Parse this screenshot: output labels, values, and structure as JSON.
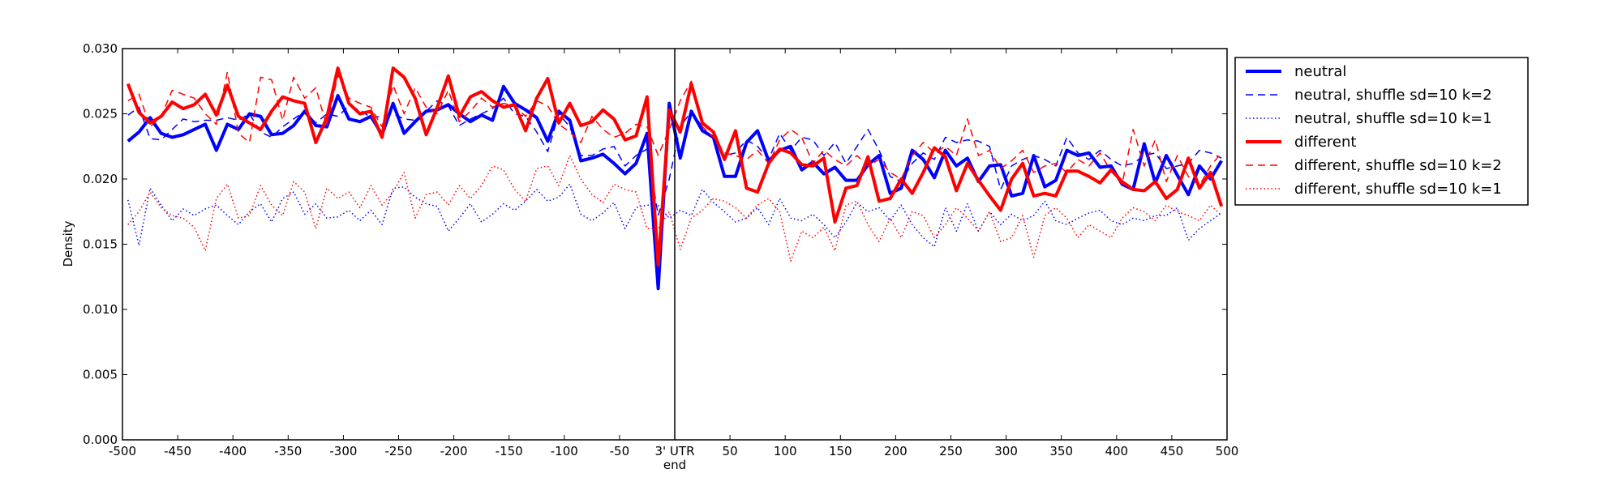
{
  "chart_data": {
    "type": "line",
    "xlabel": "",
    "ylabel": "Density",
    "xlim": [
      -500,
      500
    ],
    "ylim": [
      0.0,
      0.03
    ],
    "grid": false,
    "legend_position": "outside-upper-right",
    "vline_x": 0,
    "x_ticks": [
      {
        "value": -500,
        "label": "-500"
      },
      {
        "value": -450,
        "label": "-450"
      },
      {
        "value": -400,
        "label": "-400"
      },
      {
        "value": -350,
        "label": "-350"
      },
      {
        "value": -300,
        "label": "-300"
      },
      {
        "value": -250,
        "label": "-250"
      },
      {
        "value": -200,
        "label": "-200"
      },
      {
        "value": -150,
        "label": "-150"
      },
      {
        "value": -100,
        "label": "-100"
      },
      {
        "value": -50,
        "label": "-50"
      },
      {
        "value": 0,
        "label": "3' UTR",
        "sublabel": "end"
      },
      {
        "value": 50,
        "label": "50"
      },
      {
        "value": 100,
        "label": "100"
      },
      {
        "value": 150,
        "label": "150"
      },
      {
        "value": 200,
        "label": "200"
      },
      {
        "value": 250,
        "label": "250"
      },
      {
        "value": 300,
        "label": "300"
      },
      {
        "value": 350,
        "label": "350"
      },
      {
        "value": 400,
        "label": "400"
      },
      {
        "value": 450,
        "label": "450"
      },
      {
        "value": 500,
        "label": "500"
      }
    ],
    "y_ticks": [
      {
        "value": 0.0,
        "label": "0.000"
      },
      {
        "value": 0.005,
        "label": "0.005"
      },
      {
        "value": 0.01,
        "label": "0.010"
      },
      {
        "value": 0.015,
        "label": "0.015"
      },
      {
        "value": 0.02,
        "label": "0.020"
      },
      {
        "value": 0.025,
        "label": "0.025"
      },
      {
        "value": 0.03,
        "label": "0.030"
      }
    ],
    "x": [
      -495,
      -485,
      -475,
      -465,
      -455,
      -445,
      -435,
      -425,
      -415,
      -405,
      -395,
      -385,
      -375,
      -365,
      -355,
      -345,
      -335,
      -325,
      -315,
      -305,
      -295,
      -285,
      -275,
      -265,
      -255,
      -245,
      -235,
      -225,
      -215,
      -205,
      -195,
      -185,
      -175,
      -165,
      -155,
      -145,
      -135,
      -125,
      -115,
      -105,
      -95,
      -85,
      -75,
      -65,
      -55,
      -45,
      -35,
      -25,
      -15,
      -5,
      5,
      15,
      25,
      35,
      45,
      55,
      65,
      75,
      85,
      95,
      105,
      115,
      125,
      135,
      145,
      155,
      165,
      175,
      185,
      195,
      205,
      215,
      225,
      235,
      245,
      255,
      265,
      275,
      285,
      295,
      305,
      315,
      325,
      335,
      345,
      355,
      365,
      375,
      385,
      395,
      405,
      415,
      425,
      435,
      445,
      455,
      465,
      475,
      485,
      495
    ],
    "series": [
      {
        "name": "neutral",
        "color": "#0000ff",
        "style": "solid",
        "width": 4,
        "values": [
          0.0229,
          0.0236,
          0.0247,
          0.0235,
          0.0232,
          0.0234,
          0.0238,
          0.0242,
          0.0222,
          0.0242,
          0.0238,
          0.025,
          0.0248,
          0.0234,
          0.0235,
          0.0241,
          0.0252,
          0.0241,
          0.024,
          0.0264,
          0.0246,
          0.0244,
          0.0248,
          0.0234,
          0.0258,
          0.0235,
          0.0244,
          0.0252,
          0.0253,
          0.0257,
          0.025,
          0.0244,
          0.0249,
          0.0245,
          0.0271,
          0.0258,
          0.0253,
          0.0247,
          0.0229,
          0.0252,
          0.0245,
          0.0214,
          0.0216,
          0.0219,
          0.0212,
          0.0204,
          0.0212,
          0.0235,
          0.0116,
          0.0258,
          0.0216,
          0.0252,
          0.0237,
          0.0232,
          0.0202,
          0.0202,
          0.0228,
          0.0237,
          0.0214,
          0.0222,
          0.0225,
          0.0207,
          0.0213,
          0.0204,
          0.0209,
          0.0199,
          0.0199,
          0.0211,
          0.0218,
          0.0189,
          0.0193,
          0.0222,
          0.0215,
          0.0201,
          0.0222,
          0.021,
          0.0216,
          0.0198,
          0.021,
          0.0211,
          0.0187,
          0.0189,
          0.0218,
          0.0194,
          0.0199,
          0.0222,
          0.0218,
          0.022,
          0.0209,
          0.021,
          0.0196,
          0.0192,
          0.0227,
          0.0197,
          0.0218,
          0.0203,
          0.0188,
          0.021,
          0.02,
          0.0214
        ]
      },
      {
        "name": "neutral, shuffle sd=10 k=2",
        "color": "#0000ff",
        "style": "dashed",
        "width": 1.5,
        "values": [
          0.0249,
          0.0255,
          0.0231,
          0.023,
          0.0238,
          0.0246,
          0.0244,
          0.0245,
          0.0245,
          0.0247,
          0.0245,
          0.025,
          0.0236,
          0.0232,
          0.024,
          0.0246,
          0.0252,
          0.0243,
          0.025,
          0.0248,
          0.0256,
          0.0253,
          0.0247,
          0.0248,
          0.025,
          0.0246,
          0.0245,
          0.0252,
          0.026,
          0.0256,
          0.0241,
          0.0246,
          0.025,
          0.0254,
          0.0262,
          0.025,
          0.0248,
          0.0236,
          0.0221,
          0.025,
          0.024,
          0.0218,
          0.0218,
          0.0223,
          0.0225,
          0.021,
          0.0218,
          0.0223,
          0.0172,
          0.02,
          0.024,
          0.0252,
          0.024,
          0.023,
          0.0218,
          0.022,
          0.023,
          0.0225,
          0.0215,
          0.0235,
          0.0222,
          0.0232,
          0.023,
          0.0218,
          0.0228,
          0.0212,
          0.0225,
          0.0238,
          0.0222,
          0.0202,
          0.0198,
          0.0212,
          0.022,
          0.0215,
          0.0232,
          0.0228,
          0.023,
          0.0229,
          0.0225,
          0.0192,
          0.021,
          0.0215,
          0.0218,
          0.0215,
          0.021,
          0.0232,
          0.022,
          0.0215,
          0.0222,
          0.0215,
          0.021,
          0.0212,
          0.0218,
          0.022,
          0.0208,
          0.021,
          0.0212,
          0.0222,
          0.022,
          0.0216
        ]
      },
      {
        "name": "neutral, shuffle sd=10 k=1",
        "color": "#0000ff",
        "style": "dotted",
        "width": 1.5,
        "values": [
          0.0184,
          0.0149,
          0.0193,
          0.018,
          0.0168,
          0.0177,
          0.0172,
          0.0177,
          0.018,
          0.0172,
          0.0165,
          0.0175,
          0.0181,
          0.0167,
          0.0185,
          0.019,
          0.0173,
          0.0181,
          0.017,
          0.0171,
          0.0176,
          0.0168,
          0.0176,
          0.0165,
          0.0193,
          0.0194,
          0.0186,
          0.0181,
          0.0179,
          0.016,
          0.017,
          0.0181,
          0.0167,
          0.0173,
          0.0181,
          0.0176,
          0.0183,
          0.0192,
          0.0183,
          0.0186,
          0.0196,
          0.0173,
          0.0168,
          0.0174,
          0.0182,
          0.0162,
          0.0178,
          0.018,
          0.018,
          0.017,
          0.0176,
          0.0172,
          0.0192,
          0.0182,
          0.0175,
          0.0167,
          0.017,
          0.0178,
          0.0165,
          0.0185,
          0.017,
          0.0168,
          0.0173,
          0.0165,
          0.0155,
          0.0167,
          0.0182,
          0.0175,
          0.0178,
          0.0168,
          0.018,
          0.0165,
          0.0155,
          0.0148,
          0.0178,
          0.016,
          0.0181,
          0.016,
          0.0175,
          0.0165,
          0.0173,
          0.0168,
          0.0172,
          0.0183,
          0.0168,
          0.0165,
          0.017,
          0.0174,
          0.0176,
          0.0168,
          0.0165,
          0.017,
          0.0168,
          0.0172,
          0.0172,
          0.0178,
          0.0153,
          0.0162,
          0.0168,
          0.0174
        ]
      },
      {
        "name": "different",
        "color": "#ff0000",
        "style": "solid",
        "width": 4,
        "values": [
          0.0273,
          0.0251,
          0.0243,
          0.0248,
          0.0259,
          0.0254,
          0.0257,
          0.0265,
          0.0249,
          0.0272,
          0.0248,
          0.0243,
          0.0238,
          0.0252,
          0.0263,
          0.026,
          0.0258,
          0.0228,
          0.0247,
          0.0285,
          0.0258,
          0.025,
          0.0252,
          0.0232,
          0.0285,
          0.0278,
          0.0262,
          0.0234,
          0.0255,
          0.0279,
          0.0248,
          0.0263,
          0.0267,
          0.026,
          0.0255,
          0.0257,
          0.0237,
          0.0262,
          0.0277,
          0.0243,
          0.0258,
          0.0241,
          0.0244,
          0.0253,
          0.0246,
          0.023,
          0.0233,
          0.0263,
          0.0134,
          0.0253,
          0.0236,
          0.0273,
          0.0243,
          0.0236,
          0.0215,
          0.0237,
          0.0193,
          0.019,
          0.0212,
          0.0223,
          0.022,
          0.0211,
          0.021,
          0.0216,
          0.0167,
          0.0193,
          0.0195,
          0.0217,
          0.0183,
          0.0185,
          0.02,
          0.0189,
          0.0205,
          0.0224,
          0.0217,
          0.0191,
          0.0212,
          0.0199,
          0.0187,
          0.0176,
          0.02,
          0.0212,
          0.0187,
          0.0189,
          0.0187,
          0.0206,
          0.0206,
          0.0202,
          0.0197,
          0.0207,
          0.0198,
          0.0192,
          0.0191,
          0.0198,
          0.0185,
          0.0192,
          0.0216,
          0.0193,
          0.0205,
          0.0179
        ]
      },
      {
        "name": "different, shuffle sd=10 k=2",
        "color": "#ff0000",
        "style": "dashed",
        "width": 1.5,
        "values": [
          0.026,
          0.0265,
          0.024,
          0.0248,
          0.0268,
          0.0265,
          0.0262,
          0.025,
          0.0242,
          0.0282,
          0.0235,
          0.0228,
          0.0278,
          0.0276,
          0.0245,
          0.0278,
          0.0262,
          0.027,
          0.024,
          0.028,
          0.0262,
          0.0258,
          0.0255,
          0.024,
          0.0272,
          0.025,
          0.027,
          0.0255,
          0.025,
          0.0268,
          0.0244,
          0.0252,
          0.0262,
          0.0255,
          0.0258,
          0.0256,
          0.0248,
          0.026,
          0.0256,
          0.0242,
          0.0236,
          0.0228,
          0.0248,
          0.0238,
          0.0232,
          0.0235,
          0.0242,
          0.024,
          0.0218,
          0.0238,
          0.026,
          0.0275,
          0.024,
          0.0232,
          0.022,
          0.0218,
          0.0215,
          0.0222,
          0.0212,
          0.023,
          0.0238,
          0.0232,
          0.0212,
          0.0222,
          0.0215,
          0.021,
          0.0218,
          0.021,
          0.0215,
          0.0205,
          0.02,
          0.0218,
          0.0228,
          0.022,
          0.0225,
          0.0218,
          0.0246,
          0.0218,
          0.0222,
          0.0208,
          0.0214,
          0.0222,
          0.0205,
          0.021,
          0.0212,
          0.0205,
          0.0215,
          0.021,
          0.022,
          0.0206,
          0.0196,
          0.0238,
          0.021,
          0.023,
          0.0198,
          0.0218,
          0.0202,
          0.0195,
          0.021,
          0.022
        ]
      },
      {
        "name": "different, shuffle sd=10 k=1",
        "color": "#ff0000",
        "style": "dotted",
        "width": 1.5,
        "values": [
          0.0165,
          0.0175,
          0.019,
          0.0178,
          0.0172,
          0.017,
          0.0163,
          0.0145,
          0.0185,
          0.0196,
          0.017,
          0.0172,
          0.0195,
          0.018,
          0.0172,
          0.0198,
          0.019,
          0.0162,
          0.0193,
          0.0185,
          0.019,
          0.0178,
          0.0195,
          0.018,
          0.019,
          0.0205,
          0.017,
          0.0188,
          0.019,
          0.018,
          0.0195,
          0.0185,
          0.0195,
          0.021,
          0.0207,
          0.0192,
          0.0183,
          0.0208,
          0.021,
          0.0195,
          0.0218,
          0.02,
          0.0188,
          0.0182,
          0.0196,
          0.0192,
          0.019,
          0.0162,
          0.0162,
          0.0175,
          0.0146,
          0.017,
          0.0176,
          0.0185,
          0.0183,
          0.0178,
          0.017,
          0.018,
          0.0185,
          0.0175,
          0.0137,
          0.016,
          0.0155,
          0.0163,
          0.0145,
          0.018,
          0.0183,
          0.0165,
          0.0152,
          0.017,
          0.0155,
          0.0175,
          0.0172,
          0.0155,
          0.0165,
          0.0178,
          0.017,
          0.016,
          0.0175,
          0.0152,
          0.0155,
          0.0172,
          0.014,
          0.0172,
          0.0178,
          0.017,
          0.0155,
          0.0165,
          0.016,
          0.0155,
          0.017,
          0.0178,
          0.0175,
          0.0168,
          0.018,
          0.0175,
          0.0172,
          0.0168,
          0.018,
          0.0172
        ]
      }
    ]
  }
}
